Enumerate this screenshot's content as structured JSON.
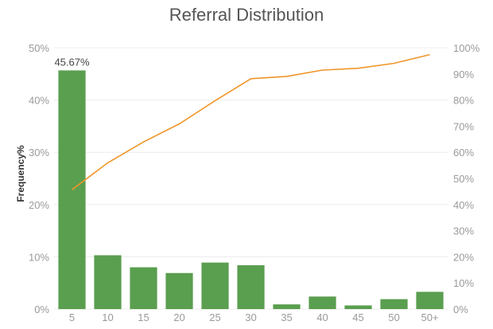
{
  "chart_data": {
    "type": "bar",
    "title": "Referral Distribution",
    "ylabel": "Frequency%",
    "xlabel": "",
    "categories": [
      "5",
      "10",
      "15",
      "20",
      "25",
      "30",
      "35",
      "40",
      "45",
      "50",
      "50+"
    ],
    "series": [
      {
        "type": "bar",
        "axis": "left",
        "color": "#5a9e4f",
        "values": [
          45.67,
          10.3,
          8.0,
          6.9,
          8.9,
          8.4,
          0.9,
          2.4,
          0.7,
          1.9,
          3.3
        ]
      },
      {
        "type": "line",
        "axis": "right",
        "color": "#f0962a",
        "values": [
          45.67,
          55.97,
          63.97,
          70.87,
          79.77,
          88.17,
          89.07,
          91.47,
          92.17,
          94.07,
          97.37
        ]
      }
    ],
    "data_labels": [
      {
        "index": 0,
        "text": "45.67%"
      }
    ],
    "ylim_left": [
      0,
      50
    ],
    "yticks_left": [
      "0%",
      "10%",
      "20%",
      "30%",
      "40%",
      "50%"
    ],
    "ylim_right": [
      0,
      100
    ],
    "yticks_right": [
      "0%",
      "10%",
      "20%",
      "30%",
      "40%",
      "50%",
      "60%",
      "70%",
      "80%",
      "90%",
      "100%"
    ],
    "grid": true,
    "legend": "none"
  }
}
